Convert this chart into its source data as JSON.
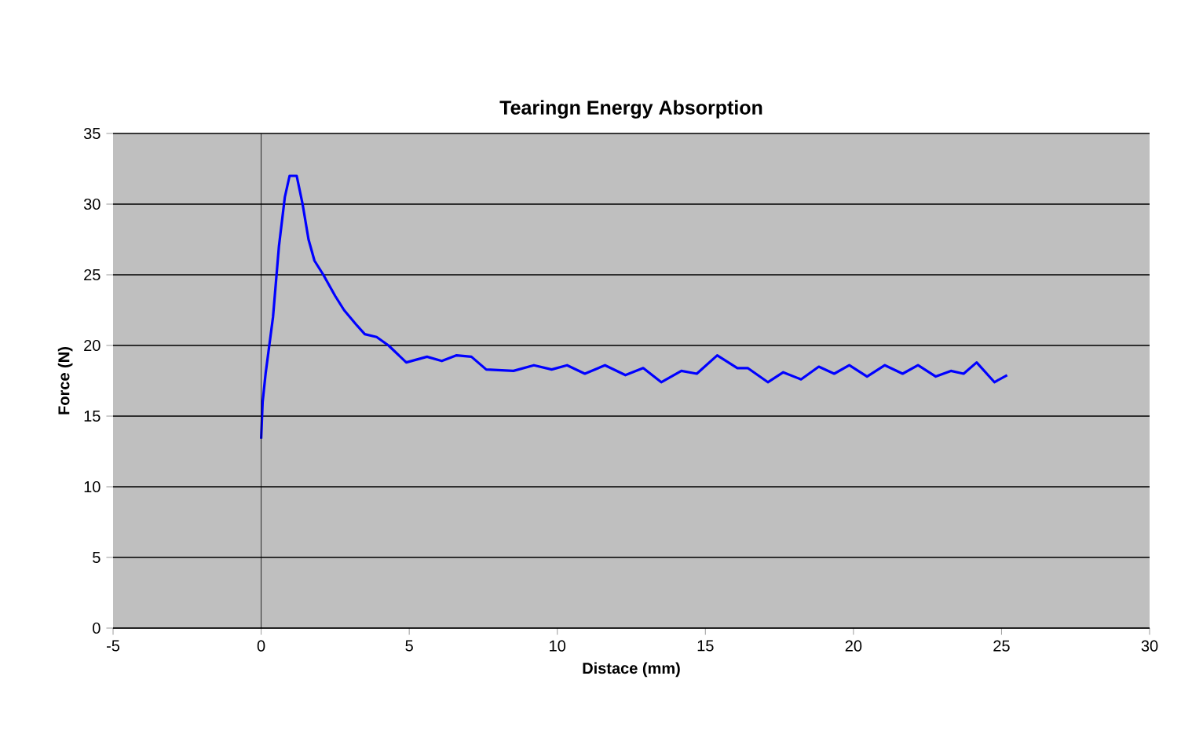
{
  "chart_data": {
    "type": "line",
    "title": "Tearingn Energy Absorption",
    "xlabel": "Distace (mm)",
    "ylabel": "Force (N)",
    "xlim": [
      -5,
      30
    ],
    "xticks": [
      -5,
      0,
      5,
      10,
      15,
      20,
      25,
      30
    ],
    "ylim": [
      0,
      35
    ],
    "yticks": [
      0,
      5,
      10,
      15,
      20,
      25,
      30,
      35
    ],
    "grid": "y",
    "series": [
      {
        "color": "#0000ff",
        "x": [
          0,
          0.05,
          0.15,
          0.4,
          0.6,
          0.8,
          0.96,
          1.2,
          1.4,
          1.6,
          1.8,
          2.1,
          2.5,
          2.8,
          3.2,
          3.5,
          3.9,
          4.3,
          4.9,
          5.6,
          6.1,
          6.6,
          7.1,
          7.6,
          8.52,
          9.21,
          9.81,
          10.33,
          10.93,
          11.61,
          12.3,
          12.9,
          13.51,
          14.19,
          14.71,
          15.4,
          16.08,
          16.43,
          17.11,
          17.63,
          18.23,
          18.83,
          19.35,
          19.86,
          20.46,
          21.06,
          21.66,
          22.18,
          22.78,
          23.29,
          23.72,
          24.16,
          24.76,
          25.19
        ],
        "values": [
          13.4,
          16,
          18,
          22,
          27,
          30.5,
          32,
          32,
          30,
          27.5,
          26,
          25,
          23.5,
          22.5,
          21.5,
          20.8,
          20.6,
          20,
          18.8,
          19.2,
          18.9,
          19.3,
          19.2,
          18.3,
          18.2,
          18.6,
          18.3,
          18.6,
          18,
          18.6,
          17.9,
          18.4,
          17.4,
          18.2,
          18,
          19.3,
          18.4,
          18.4,
          17.4,
          18.1,
          17.6,
          18.5,
          18,
          18.6,
          17.8,
          18.6,
          18,
          18.6,
          17.8,
          18.2,
          18,
          18.8,
          17.4,
          17.9
        ]
      }
    ]
  }
}
